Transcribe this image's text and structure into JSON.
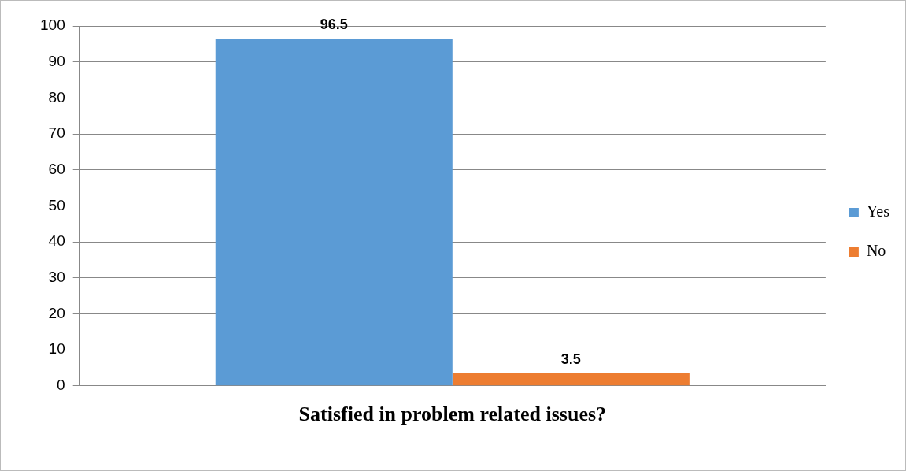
{
  "chart_data": {
    "type": "bar",
    "categories": [
      "Satisfied in problem related issues?"
    ],
    "series": [
      {
        "name": "Yes",
        "color": "#5b9bd5",
        "values": [
          96.5
        ]
      },
      {
        "name": "No",
        "color": "#ed7d31",
        "values": [
          3.5
        ]
      }
    ],
    "ylim": [
      0,
      100
    ],
    "yticks": [
      0,
      10,
      20,
      30,
      40,
      50,
      60,
      70,
      80,
      90,
      100
    ],
    "grid": "y",
    "legend": "right",
    "data_labels": true
  }
}
